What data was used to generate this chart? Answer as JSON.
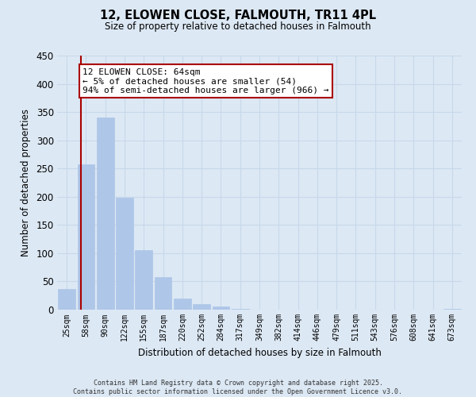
{
  "title": "12, ELOWEN CLOSE, FALMOUTH, TR11 4PL",
  "subtitle": "Size of property relative to detached houses in Falmouth",
  "xlabel": "Distribution of detached houses by size in Falmouth",
  "ylabel": "Number of detached properties",
  "bar_labels": [
    "25sqm",
    "58sqm",
    "90sqm",
    "122sqm",
    "155sqm",
    "187sqm",
    "220sqm",
    "252sqm",
    "284sqm",
    "317sqm",
    "349sqm",
    "382sqm",
    "414sqm",
    "446sqm",
    "479sqm",
    "511sqm",
    "543sqm",
    "576sqm",
    "608sqm",
    "641sqm",
    "673sqm"
  ],
  "bar_values": [
    37,
    257,
    340,
    198,
    105,
    57,
    20,
    10,
    5,
    1,
    0,
    0,
    0,
    0,
    0,
    0,
    0,
    0,
    0,
    0,
    1
  ],
  "bar_color": "#aec6e8",
  "bar_edge_color": "#aec6e8",
  "vline_x": 0.72,
  "vline_color": "#aa0000",
  "ylim": [
    0,
    450
  ],
  "yticks": [
    0,
    50,
    100,
    150,
    200,
    250,
    300,
    350,
    400,
    450
  ],
  "annotation_title": "12 ELOWEN CLOSE: 64sqm",
  "annotation_line1": "← 5% of detached houses are smaller (54)",
  "annotation_line2": "94% of semi-detached houses are larger (966) →",
  "annotation_box_facecolor": "#ffffff",
  "annotation_box_edgecolor": "#aa0000",
  "grid_color": "#c8d8ea",
  "bg_color": "#dce8f4",
  "footer_line1": "Contains HM Land Registry data © Crown copyright and database right 2025.",
  "footer_line2": "Contains public sector information licensed under the Open Government Licence v3.0."
}
